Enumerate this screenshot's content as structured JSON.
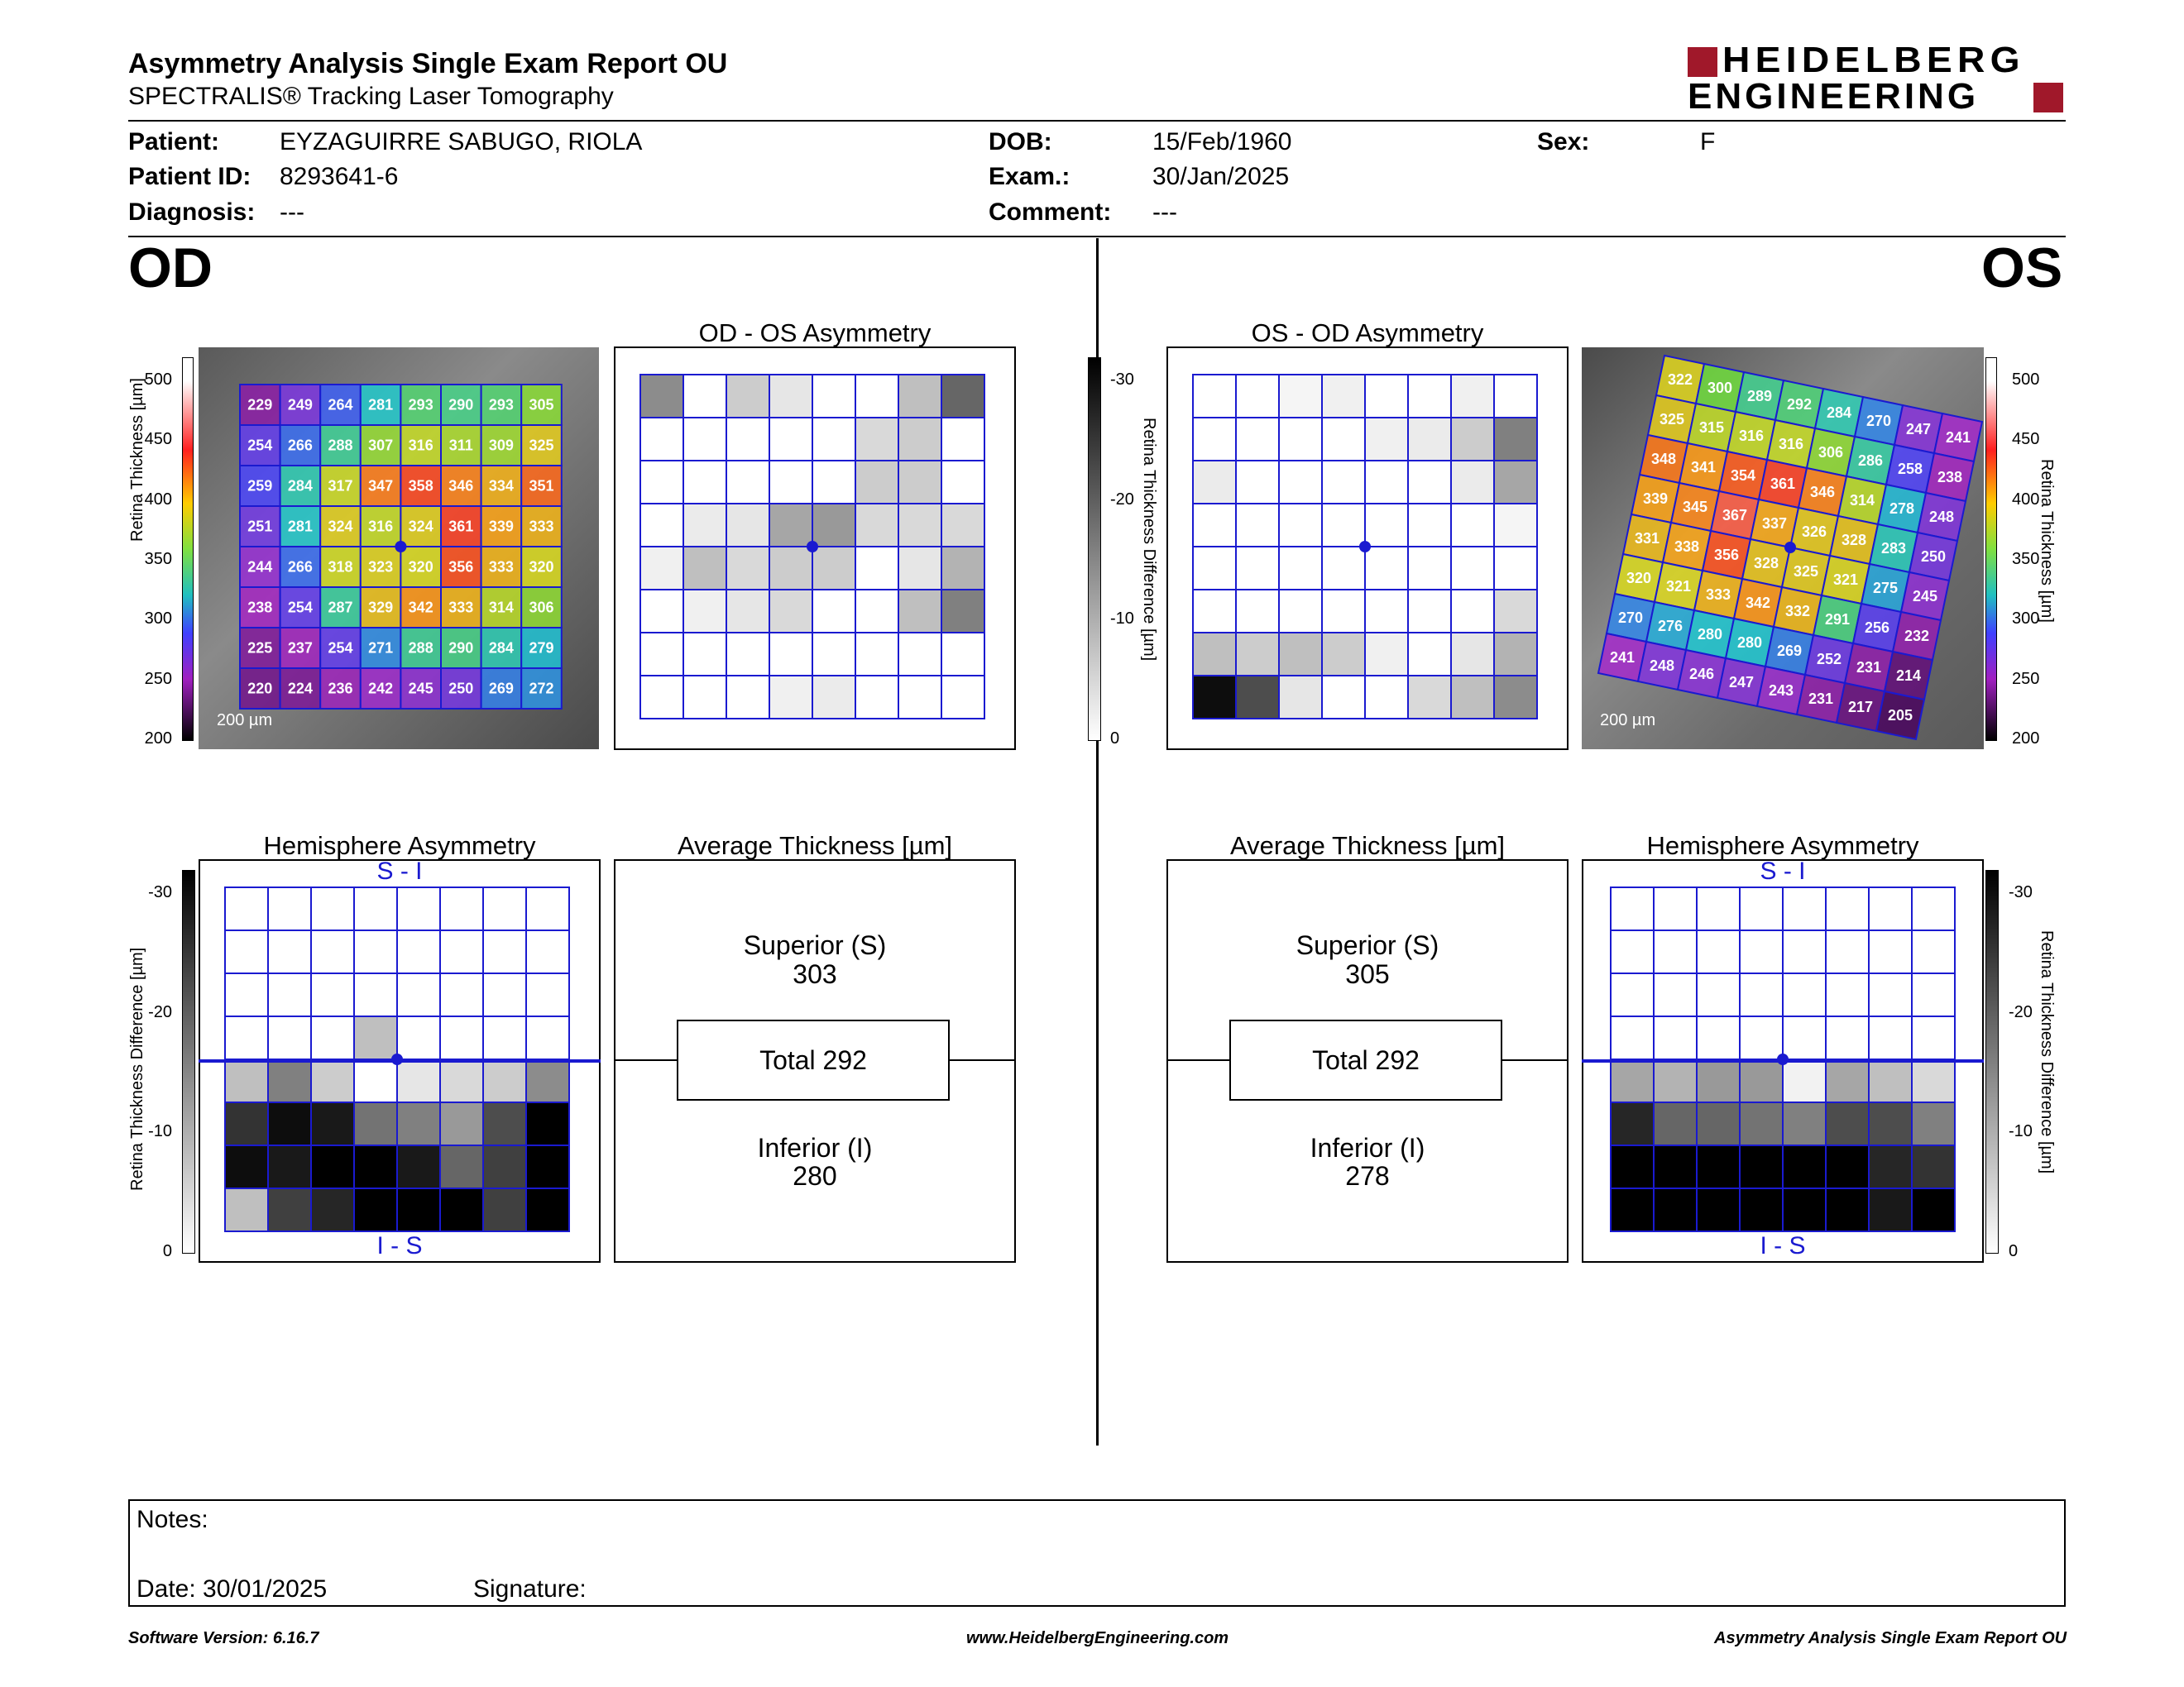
{
  "header": {
    "title": "Asymmetry Analysis Single Exam Report OU",
    "subtitle": "SPECTRALIS® Tracking Laser Tomography",
    "logo_line1": "HEIDELBERG",
    "logo_line2": "ENGINEERING",
    "brand_color": "#a0182a"
  },
  "patient": {
    "patient_label": "Patient:",
    "patient_value": "EYZAGUIRRE SABUGO, RIOLA",
    "id_label": "Patient ID:",
    "id_value": "8293641-6",
    "diagnosis_label": "Diagnosis:",
    "diagnosis_value": "---",
    "dob_label": "DOB:",
    "dob_value": "15/Feb/1960",
    "exam_label": "Exam.:",
    "exam_value": "30/Jan/2025",
    "comment_label": "Comment:",
    "comment_value": "---",
    "sex_label": "Sex:",
    "sex_value": "F"
  },
  "od": {
    "eye_label": "OD",
    "thickness_grid": [
      [
        229,
        249,
        264,
        281,
        293,
        290,
        293,
        305
      ],
      [
        254,
        266,
        288,
        307,
        316,
        311,
        309,
        325
      ],
      [
        259,
        284,
        317,
        347,
        358,
        346,
        334,
        351
      ],
      [
        251,
        281,
        324,
        316,
        324,
        361,
        339,
        333
      ],
      [
        244,
        266,
        318,
        323,
        320,
        356,
        333,
        320
      ],
      [
        238,
        254,
        287,
        329,
        342,
        333,
        314,
        306
      ],
      [
        225,
        237,
        254,
        271,
        288,
        290,
        284,
        279
      ],
      [
        220,
        224,
        236,
        242,
        245,
        250,
        269,
        272
      ]
    ],
    "scale_text": "200 µm",
    "asym_title": "OD - OS Asymmetry",
    "asym_grid": [
      [
        0.45,
        0,
        0.2,
        0.1,
        0,
        0,
        0.25,
        0.6
      ],
      [
        0,
        0,
        0,
        0,
        0,
        0.15,
        0.2,
        0
      ],
      [
        0,
        0,
        0,
        0,
        0,
        0.2,
        0.2,
        0
      ],
      [
        0,
        0.08,
        0.1,
        0.35,
        0.4,
        0.15,
        0.15,
        0.15
      ],
      [
        0.06,
        0.25,
        0.15,
        0.2,
        0.2,
        0,
        0.1,
        0.3
      ],
      [
        0,
        0.06,
        0.1,
        0.15,
        0,
        0,
        0.25,
        0.5
      ],
      [
        0,
        0,
        0,
        0,
        0,
        0,
        0,
        0
      ],
      [
        0,
        0,
        0,
        0.06,
        0.08,
        0,
        0,
        0
      ]
    ],
    "hemi_title": "Hemisphere Asymmetry",
    "hemi_grid": [
      [
        0,
        0,
        0,
        0,
        0,
        0,
        0,
        0
      ],
      [
        0,
        0,
        0,
        0,
        0,
        0,
        0,
        0
      ],
      [
        0,
        0,
        0,
        0,
        0,
        0,
        0,
        0
      ],
      [
        0,
        0,
        0,
        0.25,
        0,
        0,
        0,
        0
      ],
      [
        0.25,
        0.5,
        0.2,
        0,
        0.1,
        0.15,
        0.2,
        0.45
      ],
      [
        0.8,
        0.95,
        0.9,
        0.55,
        0.5,
        0.4,
        0.7,
        1
      ],
      [
        0.95,
        0.9,
        1,
        1,
        0.9,
        0.6,
        0.75,
        1
      ],
      [
        0.25,
        0.75,
        0.85,
        1,
        1,
        1,
        0.75,
        1
      ]
    ],
    "hemi_top": "S - I",
    "hemi_bottom": "I - S",
    "avg_title": "Average Thickness [µm]",
    "sup_label": "Superior (S)",
    "sup_value": "303",
    "total_label": "Total 292",
    "inf_label": "Inferior (I)",
    "inf_value": "280"
  },
  "os": {
    "eye_label": "OS",
    "thickness_grid": [
      [
        322,
        300,
        289,
        292,
        284,
        270,
        247,
        241
      ],
      [
        325,
        315,
        316,
        316,
        306,
        286,
        258,
        238
      ],
      [
        348,
        341,
        354,
        361,
        346,
        314,
        278,
        248
      ],
      [
        339,
        345,
        367,
        337,
        326,
        328,
        283,
        250
      ],
      [
        331,
        338,
        356,
        328,
        325,
        321,
        275,
        245
      ],
      [
        320,
        321,
        333,
        342,
        332,
        291,
        256,
        232
      ],
      [
        270,
        276,
        280,
        280,
        269,
        252,
        231,
        214
      ],
      [
        241,
        248,
        246,
        247,
        243,
        231,
        217,
        205
      ]
    ],
    "scale_text": "200 µm",
    "asym_title": "OS - OD Asymmetry",
    "asym_grid": [
      [
        0,
        0,
        0.04,
        0.06,
        0,
        0,
        0.06,
        0
      ],
      [
        0,
        0,
        0,
        0,
        0.06,
        0.08,
        0.2,
        0.5
      ],
      [
        0.08,
        0,
        0,
        0,
        0,
        0,
        0.08,
        0.35
      ],
      [
        0,
        0,
        0,
        0,
        0,
        0,
        0,
        0.04
      ],
      [
        0,
        0,
        0,
        0,
        0,
        0,
        0,
        0
      ],
      [
        0,
        0,
        0,
        0,
        0,
        0,
        0,
        0.15
      ],
      [
        0.25,
        0.2,
        0.25,
        0.2,
        0.06,
        0,
        0.1,
        0.3
      ],
      [
        0.95,
        0.7,
        0.1,
        0,
        0,
        0.15,
        0.25,
        0.45
      ]
    ],
    "hemi_title": "Hemisphere Asymmetry",
    "hemi_grid": [
      [
        0,
        0,
        0,
        0,
        0,
        0,
        0,
        0
      ],
      [
        0,
        0,
        0,
        0,
        0,
        0,
        0,
        0
      ],
      [
        0,
        0,
        0,
        0,
        0,
        0,
        0,
        0
      ],
      [
        0,
        0,
        0,
        0,
        0,
        0,
        0,
        0
      ],
      [
        0.35,
        0.3,
        0.4,
        0.4,
        0.05,
        0.35,
        0.25,
        0.15
      ],
      [
        0.85,
        0.6,
        0.6,
        0.55,
        0.5,
        0.7,
        0.7,
        0.5
      ],
      [
        1,
        1,
        1,
        1,
        1,
        1,
        0.85,
        0.8
      ],
      [
        1,
        1,
        1,
        1,
        1,
        1,
        0.9,
        1
      ]
    ],
    "hemi_top": "S - I",
    "hemi_bottom": "I - S",
    "avg_title": "Average Thickness [µm]",
    "sup_label": "Superior (S)",
    "sup_value": "305",
    "total_label": "Total 292",
    "inf_label": "Inferior (I)",
    "inf_value": "278"
  },
  "thickness_scale": {
    "label": "Retina  Thickness [µm]",
    "ticks": [
      "500",
      "450",
      "400",
      "350",
      "300",
      "250",
      "200"
    ]
  },
  "diff_scale": {
    "label": "Retina Thickness Difference [µm]",
    "ticks": [
      "-30",
      "-20",
      "-10",
      "0"
    ]
  },
  "notes": {
    "notes_label": "Notes:",
    "date_label": "Date: 30/01/2025",
    "signature_label": "Signature:"
  },
  "footer": {
    "version": "Software Version: 6.16.7",
    "website": "www.HeidelbergEngineering.com",
    "report": "Asymmetry Analysis Single Exam Report OU"
  }
}
